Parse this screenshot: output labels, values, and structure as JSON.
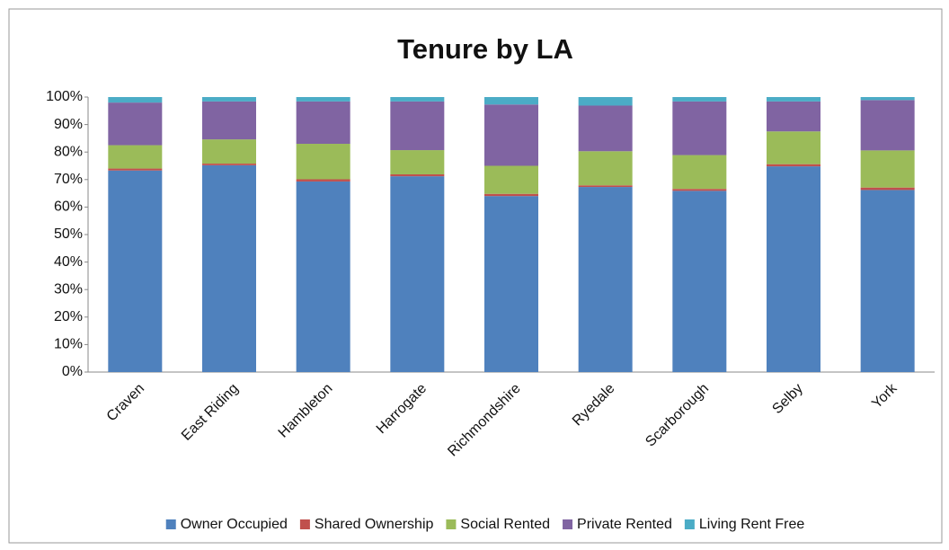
{
  "chart_data": {
    "type": "stacked_bar",
    "title": "Tenure by LA",
    "categories": [
      "Craven",
      "East Riding",
      "Hambleton",
      "Harrogate",
      "Richmondshire",
      "Ryedale",
      "Scarborough",
      "Selby",
      "York"
    ],
    "series": [
      {
        "name": "Owner Occupied",
        "color": "#4f81bd",
        "values": [
          73.3,
          75.2,
          69.3,
          71.2,
          64.0,
          67.3,
          65.9,
          74.8,
          66.2
        ]
      },
      {
        "name": "Shared Ownership",
        "color": "#c0504d",
        "values": [
          0.7,
          0.6,
          0.8,
          0.7,
          0.8,
          0.6,
          0.7,
          0.8,
          0.9
        ]
      },
      {
        "name": "Social Rented",
        "color": "#9bbb59",
        "values": [
          8.5,
          8.8,
          12.9,
          8.8,
          10.2,
          12.4,
          12.3,
          11.9,
          13.5
        ]
      },
      {
        "name": "Private Rented",
        "color": "#8064a2",
        "values": [
          15.5,
          13.8,
          15.4,
          17.7,
          22.3,
          16.6,
          19.5,
          10.9,
          18.3
        ]
      },
      {
        "name": "Living Rent Free",
        "color": "#4bacc6",
        "values": [
          2.0,
          1.6,
          1.6,
          1.6,
          2.7,
          3.1,
          1.6,
          1.6,
          1.1
        ]
      }
    ],
    "ylim": [
      0,
      100
    ],
    "yticks": [
      {
        "value": 0,
        "label": "0%"
      },
      {
        "value": 10,
        "label": "10%"
      },
      {
        "value": 20,
        "label": "20%"
      },
      {
        "value": 30,
        "label": "30%"
      },
      {
        "value": 40,
        "label": "40%"
      },
      {
        "value": 50,
        "label": "50%"
      },
      {
        "value": 60,
        "label": "60%"
      },
      {
        "value": 70,
        "label": "70%"
      },
      {
        "value": 80,
        "label": "80%"
      },
      {
        "value": 90,
        "label": "90%"
      },
      {
        "value": 100,
        "label": "100%"
      }
    ],
    "legend": "bottom"
  }
}
